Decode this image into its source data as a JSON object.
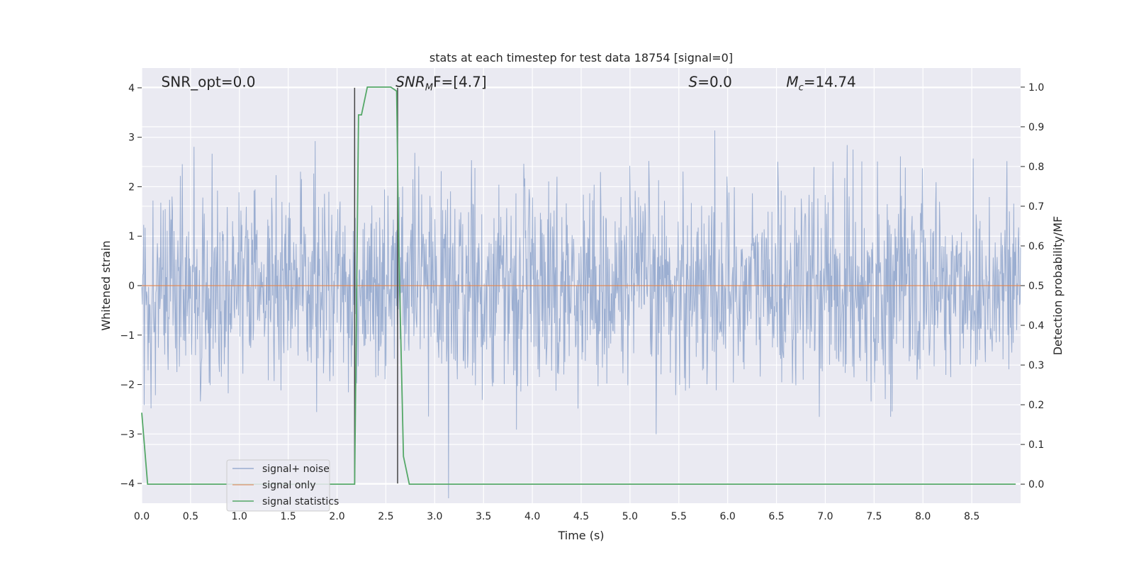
{
  "chart_data": {
    "type": "line",
    "title": "stats at each timestep for test data 18754 [signal=0]",
    "xlabel": "Time (s)",
    "ylabel": "Whitened strain",
    "y2label": "Detection probability/MF",
    "xlim": [
      0.0,
      9.0
    ],
    "ylim": [
      -4.4,
      4.4
    ],
    "y2lim": [
      -0.048,
      1.048
    ],
    "grid": true,
    "legend": "lower-left",
    "x_ticks": [
      "0.0",
      "0.5",
      "1.0",
      "1.5",
      "2.0",
      "2.5",
      "3.0",
      "3.5",
      "4.0",
      "4.5",
      "5.0",
      "5.5",
      "6.0",
      "6.5",
      "7.0",
      "7.5",
      "8.0",
      "8.5"
    ],
    "y_ticks": [
      "4",
      "3",
      "2",
      "1",
      "0",
      "−1",
      "−2",
      "−3",
      "−4"
    ],
    "y2_ticks": [
      "1.0",
      "0.9",
      "0.8",
      "0.7",
      "0.6",
      "0.5",
      "0.4",
      "0.3",
      "0.2",
      "0.1",
      "0.0"
    ],
    "annotations": [
      {
        "id": "snr-opt",
        "text": "SNR_opt=0.0",
        "x": 0.2,
        "y": 4.05
      },
      {
        "id": "snr-mf",
        "base": "SNR",
        "sub": "M",
        "rest": "F=[4.7]",
        "x": 2.6,
        "y": 4.05
      },
      {
        "id": "s-value",
        "base": "S",
        "rest": "=0.0",
        "x": 5.6,
        "y": 4.05
      },
      {
        "id": "mc-value",
        "base": "M",
        "sub": "c",
        "rest": "=14.74",
        "x": 6.6,
        "y": 4.05
      }
    ],
    "vlines": [
      {
        "x": 2.18,
        "y0": -4.0,
        "y1": 4.0
      },
      {
        "x": 2.62,
        "y0": -4.0,
        "y1": 4.0
      }
    ],
    "series": [
      {
        "name": "signal+ noise",
        "axis": "left",
        "color": "#4c72b0",
        "noise": {
          "n": 1800,
          "sigma": 1.0,
          "seed": 18754
        }
      },
      {
        "name": "signal only",
        "axis": "left",
        "color": "#dd8452",
        "x": [
          0.0,
          9.0
        ],
        "y": [
          0.0,
          0.0
        ]
      },
      {
        "name": "signal statistics",
        "axis": "right",
        "color": "#55a868",
        "x": [
          0.0,
          0.06,
          0.12,
          2.18,
          2.22,
          2.25,
          2.31,
          2.55,
          2.61,
          2.63,
          2.68,
          2.74,
          8.95
        ],
        "y": [
          0.18,
          0.0,
          0.0,
          0.0,
          0.93,
          0.93,
          1.0,
          1.0,
          0.99,
          0.62,
          0.07,
          0.0,
          0.0
        ]
      }
    ]
  }
}
